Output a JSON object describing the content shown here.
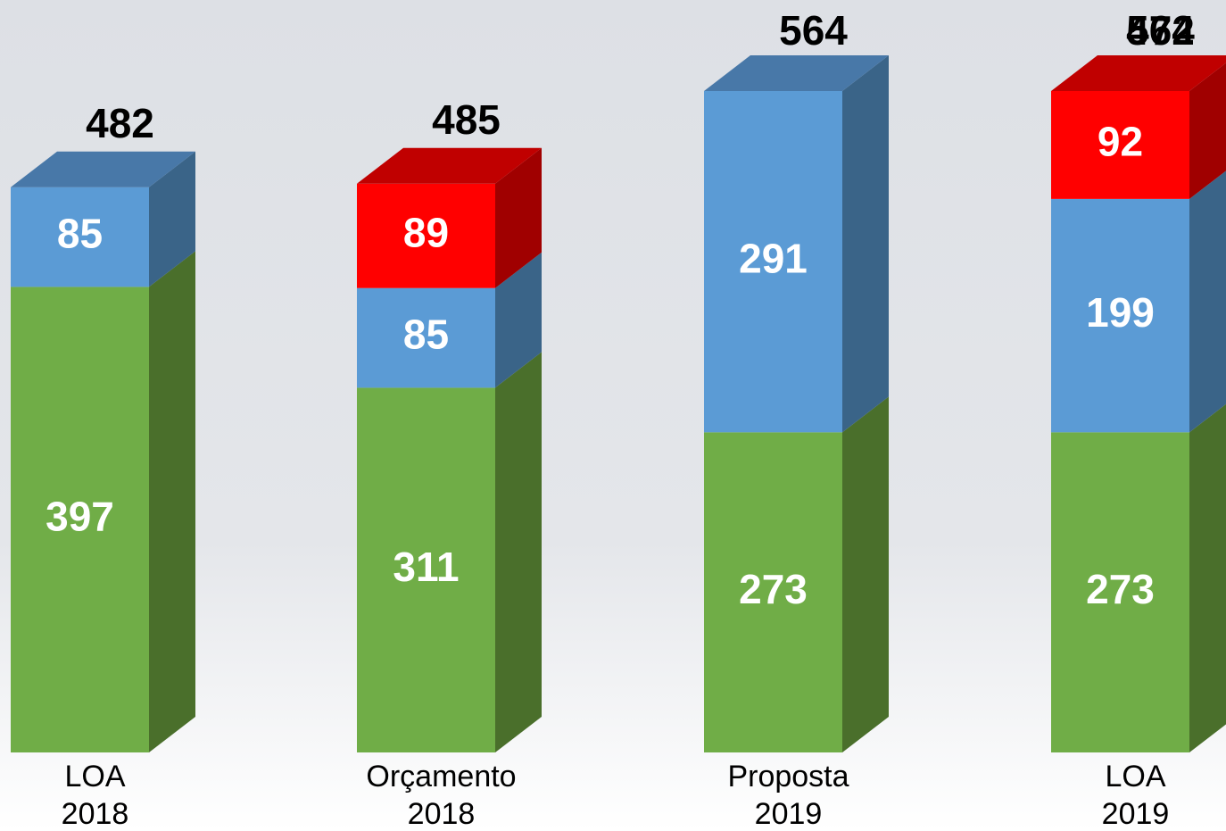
{
  "chart_data": {
    "type": "bar3d_stacked",
    "categories": [
      "LOA\n2018",
      "Orçamento\n2018",
      "Proposta\n2019",
      "LOA\n2019"
    ],
    "series": [
      {
        "color": "#70ad47",
        "side_color": "#4a6f2b",
        "top_color": "#5e8f3c",
        "values": [
          397,
          311,
          273,
          273
        ]
      },
      {
        "color": "#5b9bd5",
        "side_color": "#3a6488",
        "top_color": "#4878a8",
        "values": [
          85,
          85,
          291,
          199
        ]
      },
      {
        "color": "#ff0000",
        "side_color": "#a00000",
        "top_color": "#c00000",
        "values": [
          null,
          89,
          null,
          92
        ]
      }
    ],
    "totals": [
      [
        482
      ],
      [
        485
      ],
      [
        564
      ],
      [
        564,
        472
      ]
    ]
  }
}
